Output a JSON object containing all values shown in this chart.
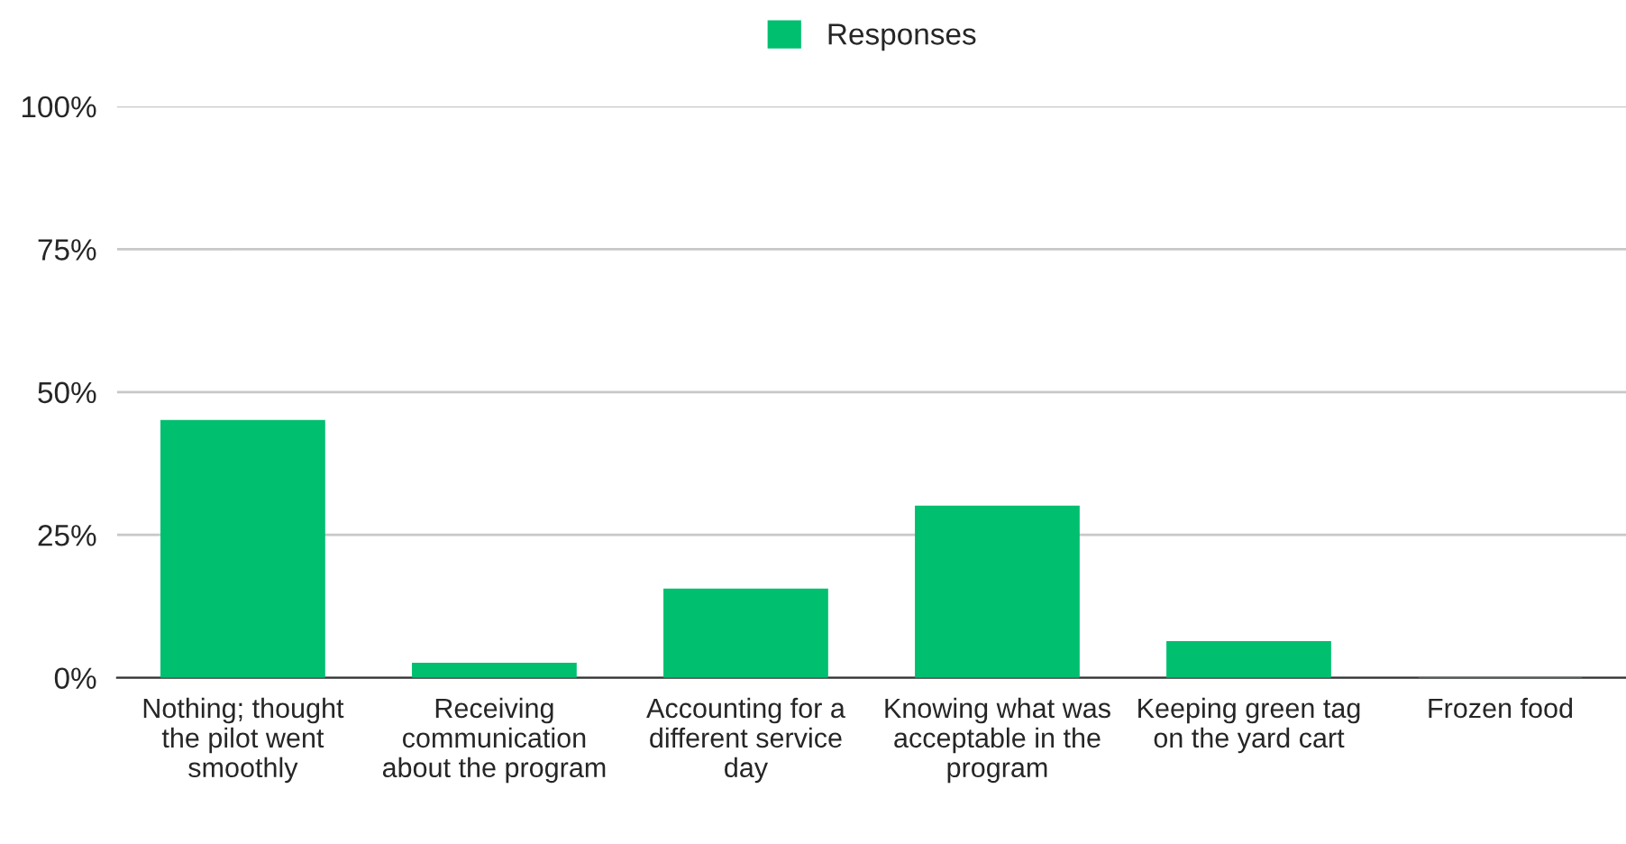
{
  "chart_data": {
    "type": "bar",
    "categories": [
      "Nothing; thought the pilot went smoothly",
      "Receiving communication about the program",
      "Accounting for a different service day",
      "Knowing what was acceptable in the program",
      "Keeping green tag on the yard cart",
      "Frozen food"
    ],
    "series": [
      {
        "name": "Responses",
        "color": "#00bf6f",
        "values": [
          45,
          2.5,
          15.5,
          30,
          6.3,
          0
        ]
      }
    ],
    "ylim": [
      0,
      100
    ],
    "yticks": [
      {
        "value": 0,
        "label": "0%"
      },
      {
        "value": 25,
        "label": "25%"
      },
      {
        "value": 50,
        "label": "50%"
      },
      {
        "value": 75,
        "label": "75%"
      },
      {
        "value": 100,
        "label": "100%"
      }
    ],
    "grid": "y",
    "legend": "top"
  }
}
